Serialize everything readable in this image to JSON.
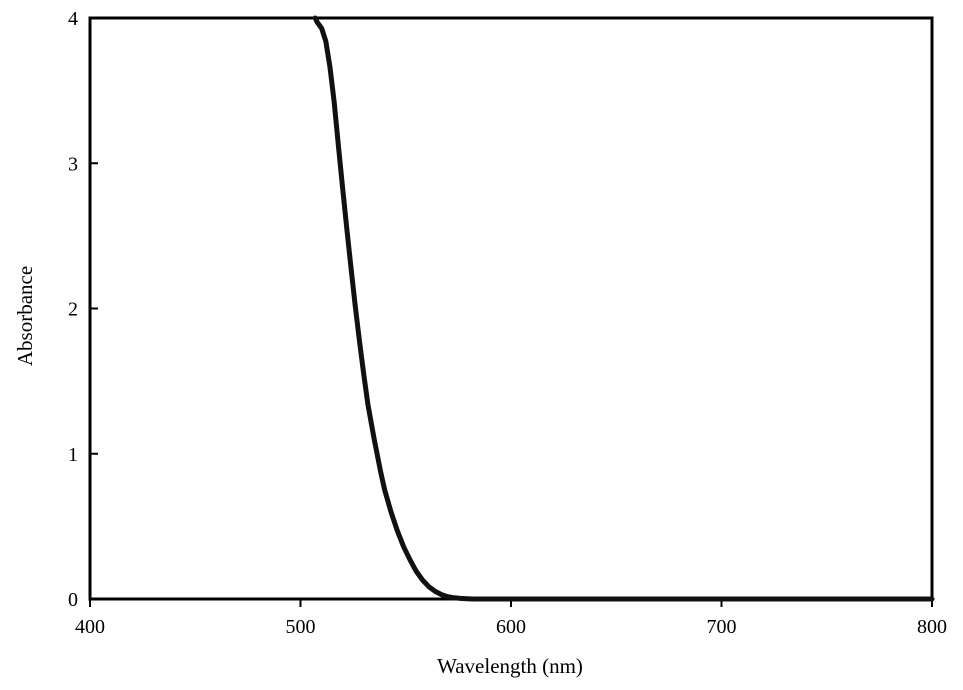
{
  "chart_data": {
    "type": "line",
    "title": "",
    "xlabel": "Wavelength (nm)",
    "ylabel": "Absorbance",
    "xlim": [
      400,
      800
    ],
    "ylim": [
      0,
      4
    ],
    "x_ticks": [
      400,
      500,
      600,
      700,
      800
    ],
    "y_ticks": [
      0,
      1,
      2,
      3,
      4
    ],
    "grid": false,
    "legend": "none",
    "line_color": "#111111",
    "series": [
      {
        "x": [
          507,
          508,
          510,
          512,
          514,
          516,
          518,
          520,
          522,
          524,
          526,
          528,
          530,
          532,
          535,
          538,
          540,
          543,
          546,
          549,
          552,
          555,
          558,
          561,
          564,
          567,
          570,
          573,
          576,
          579,
          582,
          590,
          600,
          650,
          700,
          750,
          800
        ],
        "y": [
          4.0,
          3.97,
          3.93,
          3.84,
          3.66,
          3.42,
          3.12,
          2.83,
          2.55,
          2.28,
          2.02,
          1.78,
          1.55,
          1.34,
          1.1,
          0.88,
          0.75,
          0.6,
          0.47,
          0.36,
          0.27,
          0.19,
          0.13,
          0.085,
          0.052,
          0.03,
          0.016,
          0.008,
          0.004,
          0.002,
          0.0,
          0.0,
          0.0,
          0.0,
          0.0,
          0.0,
          0.0
        ]
      }
    ]
  }
}
